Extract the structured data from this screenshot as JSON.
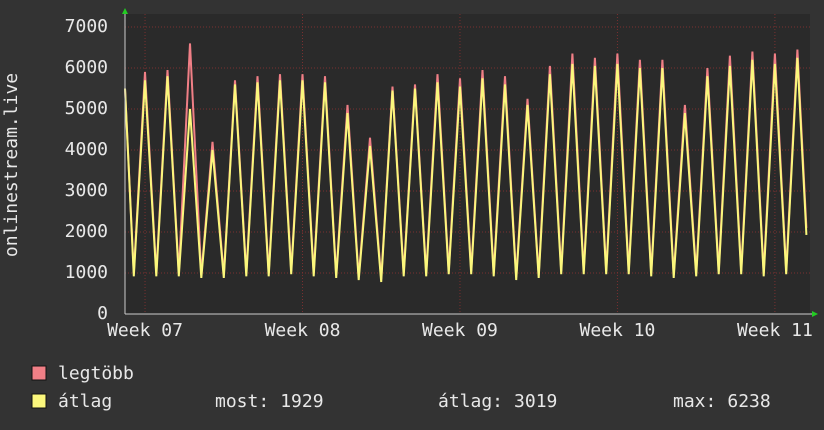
{
  "chart_data": {
    "type": "line",
    "y_label": "onlinestream.live",
    "x": [
      -0.89,
      -0.5,
      0,
      0.5,
      1,
      1.5,
      2,
      2.5,
      3,
      3.5,
      4,
      4.5,
      5,
      5.5,
      6,
      6.5,
      7,
      7.5,
      8,
      8.5,
      9,
      9.5,
      10,
      10.5,
      11,
      11.5,
      12,
      12.5,
      13,
      13.5,
      14,
      14.5,
      15,
      15.5,
      16,
      16.5,
      17,
      17.5,
      18,
      18.5,
      19,
      19.5,
      20,
      20.5,
      21,
      21.5,
      22,
      22.5,
      23,
      23.5,
      24,
      24.5,
      25,
      25.5,
      26,
      26.5,
      27,
      27.5,
      28,
      28.5,
      29,
      29.4
    ],
    "series": [
      {
        "name": "legtöbb",
        "color": "#f07f86",
        "values": [
          5500,
          1000,
          5900,
          1000,
          5950,
          1000,
          6600,
          950,
          4200,
          950,
          5700,
          1000,
          5800,
          1000,
          5850,
          1050,
          5850,
          1000,
          5800,
          950,
          5100,
          900,
          4300,
          850,
          5550,
          1000,
          5600,
          1000,
          5850,
          1050,
          5750,
          1050,
          5950,
          1000,
          5800,
          900,
          5250,
          950,
          6050,
          1050,
          6350,
          1050,
          6250,
          1050,
          6350,
          1050,
          6200,
          1000,
          6200,
          950,
          5100,
          1000,
          6000,
          1050,
          6300,
          1050,
          6400,
          1000,
          6350,
          1050,
          6450,
          2100
        ]
      },
      {
        "name": "átlag",
        "color": "#fbf77c",
        "values": [
          5500,
          920,
          5700,
          920,
          5800,
          920,
          5000,
          880,
          4000,
          880,
          5600,
          920,
          5650,
          920,
          5700,
          970,
          5700,
          920,
          5650,
          880,
          4900,
          830,
          4100,
          780,
          5450,
          920,
          5500,
          920,
          5650,
          970,
          5550,
          970,
          5750,
          920,
          5600,
          830,
          5100,
          880,
          5850,
          970,
          6100,
          970,
          6050,
          970,
          6100,
          970,
          6000,
          920,
          6000,
          880,
          4900,
          920,
          5800,
          970,
          6050,
          970,
          6200,
          920,
          6100,
          970,
          6250,
          1929
        ]
      }
    ],
    "xlim": [
      -0.89,
      29.56
    ],
    "xticks": [
      {
        "value": 0,
        "label": "Week 07"
      },
      {
        "value": 7,
        "label": "Week 08"
      },
      {
        "value": 14,
        "label": "Week 09"
      },
      {
        "value": 21,
        "label": "Week 10"
      },
      {
        "value": 28,
        "label": "Week 11"
      }
    ],
    "ylim": [
      0,
      7000
    ],
    "yticks": [
      0,
      1000,
      2000,
      3000,
      4000,
      5000,
      6000,
      7000
    ],
    "grid": true,
    "stats": [
      {
        "label": "most:",
        "value": 1929
      },
      {
        "label": "átlag:",
        "value": 3019
      },
      {
        "label": "max:",
        "value": 6238
      }
    ]
  }
}
